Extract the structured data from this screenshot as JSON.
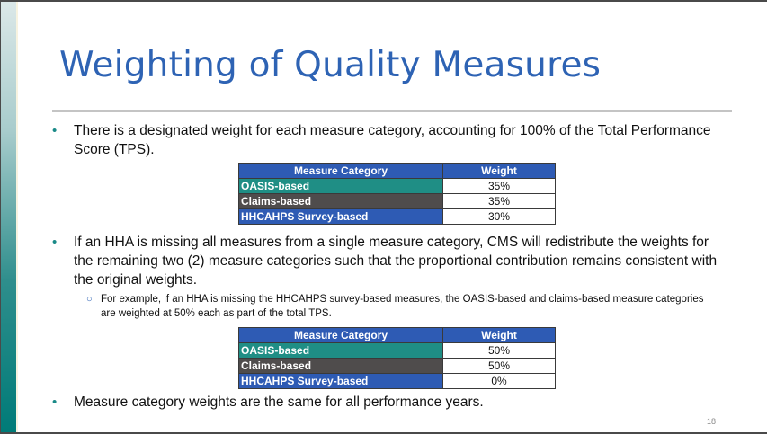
{
  "slide": {
    "title": "Weighting of Quality Measures",
    "page_number": "18",
    "bullets": [
      "There is a designated weight for each measure category, accounting for 100% of the Total Performance Score (TPS).",
      "If an HHA is missing all measures from a single measure category, CMS will redistribute the weights for the remaining two (2) measure categories such that the proportional contribution remains consistent with the original weights.",
      "Measure category weights are the same for all performance years."
    ],
    "sub_bullet": "For example, if an HHA is missing the HHCAHPS survey-based measures, the OASIS-based and claims-based measure categories are weighted at 50% each as part of the total TPS."
  },
  "table1": {
    "headers": [
      "Measure Category",
      "Weight"
    ],
    "rows": [
      {
        "category": "OASIS-based",
        "weight": "35%",
        "color": "#1f8e85"
      },
      {
        "category": "Claims-based",
        "weight": "35%",
        "color": "#4f4c4c"
      },
      {
        "category": "HHCAHPS Survey-based",
        "weight": "30%",
        "color": "#2e5bb4"
      }
    ]
  },
  "table2": {
    "headers": [
      "Measure Category",
      "Weight"
    ],
    "rows": [
      {
        "category": "OASIS-based",
        "weight": "50%",
        "color": "#1f8e85"
      },
      {
        "category": "Claims-based",
        "weight": "50%",
        "color": "#4f4c4c"
      },
      {
        "category": "HHCAHPS Survey-based",
        "weight": "0%",
        "color": "#2e5bb4"
      }
    ]
  },
  "colors": {
    "title": "#2e63b4",
    "header": "#2e5bb4",
    "accent": "#1a8a88"
  }
}
